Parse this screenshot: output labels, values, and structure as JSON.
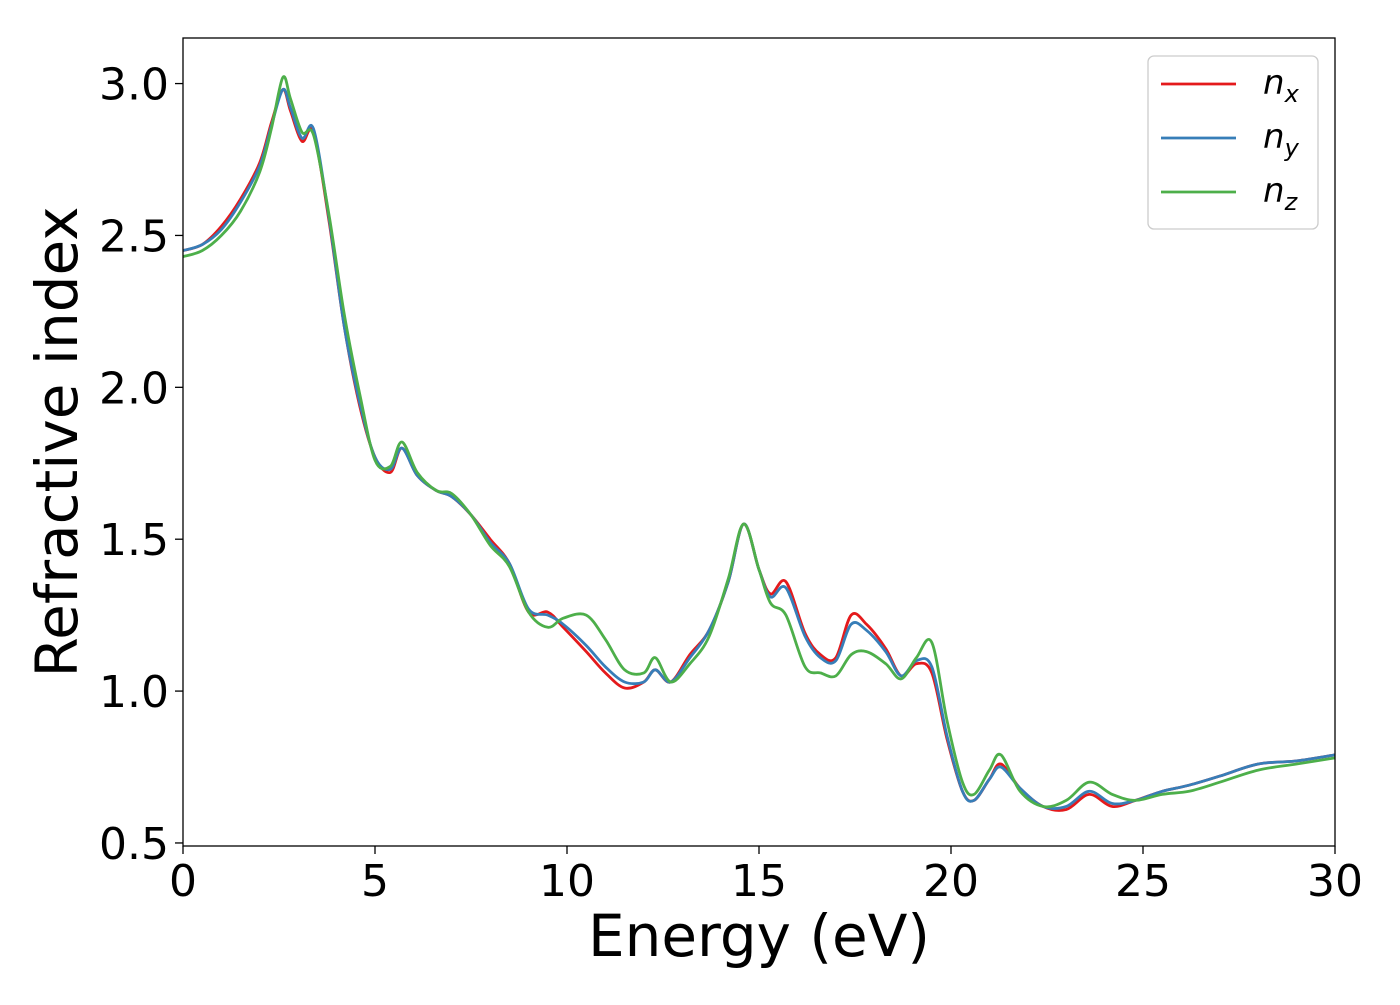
{
  "chart_data": {
    "type": "line",
    "xlabel": "Energy (eV)",
    "ylabel": "Refractive index",
    "xlim": [
      0,
      30
    ],
    "ylim": [
      0.49,
      3.15
    ],
    "x_ticks": [
      "0",
      "5",
      "10",
      "15",
      "20",
      "25",
      "30"
    ],
    "y_ticks": [
      "0.5",
      "1.0",
      "1.5",
      "2.0",
      "2.5",
      "3.0"
    ],
    "grid": false,
    "legend_position": "top-right",
    "series": [
      {
        "name": "n",
        "subscript": "x",
        "color": "#e41a1c",
        "x": [
          0,
          0.5,
          1,
          1.5,
          2,
          2.3,
          2.6,
          2.8,
          3.1,
          3.4,
          3.8,
          4.2,
          4.6,
          5.0,
          5.4,
          5.7,
          6.1,
          6.6,
          7.0,
          7.5,
          8.0,
          8.5,
          9.0,
          9.5,
          9.9,
          10.5,
          11.0,
          11.5,
          12.0,
          12.3,
          12.7,
          13.2,
          13.7,
          14.2,
          14.6,
          15.0,
          15.3,
          15.7,
          16.2,
          16.6,
          17.0,
          17.4,
          17.8,
          18.3,
          18.7,
          19.1,
          19.5,
          19.9,
          20.3,
          20.6,
          21.0,
          21.3,
          21.8,
          22.4,
          23.0,
          23.6,
          24.2,
          24.8,
          25.5,
          26.2,
          27.0,
          28.0,
          29.0,
          30.0
        ],
        "y": [
          2.45,
          2.47,
          2.53,
          2.62,
          2.74,
          2.87,
          2.98,
          2.91,
          2.81,
          2.84,
          2.55,
          2.2,
          1.94,
          1.77,
          1.72,
          1.8,
          1.71,
          1.66,
          1.64,
          1.58,
          1.5,
          1.42,
          1.26,
          1.26,
          1.21,
          1.13,
          1.06,
          1.01,
          1.03,
          1.07,
          1.03,
          1.12,
          1.2,
          1.36,
          1.55,
          1.4,
          1.32,
          1.36,
          1.19,
          1.12,
          1.11,
          1.25,
          1.22,
          1.14,
          1.05,
          1.09,
          1.06,
          0.84,
          0.67,
          0.64,
          0.71,
          0.76,
          0.68,
          0.62,
          0.61,
          0.66,
          0.62,
          0.64,
          0.67,
          0.69,
          0.72,
          0.76,
          0.77,
          0.79
        ]
      },
      {
        "name": "n",
        "subscript": "y",
        "color": "#377eb8",
        "x": [
          0,
          0.5,
          1,
          1.5,
          2,
          2.3,
          2.6,
          2.8,
          3.1,
          3.4,
          3.8,
          4.2,
          4.6,
          5.0,
          5.4,
          5.7,
          6.1,
          6.6,
          7.0,
          7.5,
          8.0,
          8.5,
          9.0,
          9.5,
          9.9,
          10.5,
          11.0,
          11.5,
          12.0,
          12.3,
          12.7,
          13.2,
          13.7,
          14.2,
          14.6,
          15.0,
          15.3,
          15.7,
          16.2,
          16.6,
          17.0,
          17.4,
          17.8,
          18.3,
          18.7,
          19.1,
          19.5,
          19.9,
          20.3,
          20.6,
          21.0,
          21.3,
          21.8,
          22.4,
          23.0,
          23.6,
          24.2,
          24.8,
          25.5,
          26.2,
          27.0,
          28.0,
          29.0,
          30.0
        ],
        "y": [
          2.45,
          2.47,
          2.52,
          2.61,
          2.73,
          2.86,
          2.98,
          2.92,
          2.82,
          2.85,
          2.56,
          2.2,
          1.95,
          1.77,
          1.73,
          1.8,
          1.71,
          1.66,
          1.64,
          1.58,
          1.49,
          1.42,
          1.27,
          1.25,
          1.22,
          1.15,
          1.08,
          1.03,
          1.03,
          1.07,
          1.03,
          1.11,
          1.2,
          1.36,
          1.55,
          1.4,
          1.31,
          1.34,
          1.18,
          1.11,
          1.1,
          1.22,
          1.2,
          1.13,
          1.05,
          1.1,
          1.08,
          0.85,
          0.67,
          0.64,
          0.71,
          0.75,
          0.68,
          0.62,
          0.62,
          0.67,
          0.63,
          0.64,
          0.67,
          0.69,
          0.72,
          0.76,
          0.77,
          0.79
        ]
      },
      {
        "name": "n",
        "subscript": "z",
        "color": "#4daf4a",
        "x": [
          0,
          0.5,
          1,
          1.5,
          2,
          2.3,
          2.6,
          2.8,
          3.1,
          3.4,
          3.8,
          4.2,
          4.6,
          5.0,
          5.4,
          5.7,
          6.1,
          6.6,
          7.0,
          7.5,
          8.0,
          8.5,
          9.0,
          9.5,
          9.9,
          10.5,
          11.0,
          11.5,
          12.0,
          12.3,
          12.7,
          13.2,
          13.7,
          14.2,
          14.6,
          15.0,
          15.3,
          15.7,
          16.2,
          16.6,
          17.0,
          17.4,
          17.8,
          18.3,
          18.7,
          19.1,
          19.5,
          19.9,
          20.3,
          20.6,
          21.0,
          21.3,
          21.8,
          22.4,
          23.0,
          23.6,
          24.2,
          24.8,
          25.5,
          26.2,
          27.0,
          28.0,
          29.0,
          30.0
        ],
        "y": [
          2.43,
          2.45,
          2.5,
          2.58,
          2.71,
          2.85,
          3.02,
          2.95,
          2.84,
          2.83,
          2.57,
          2.24,
          1.98,
          1.76,
          1.74,
          1.82,
          1.72,
          1.66,
          1.65,
          1.58,
          1.48,
          1.41,
          1.26,
          1.21,
          1.24,
          1.25,
          1.17,
          1.07,
          1.06,
          1.11,
          1.03,
          1.09,
          1.18,
          1.37,
          1.55,
          1.4,
          1.29,
          1.25,
          1.08,
          1.06,
          1.05,
          1.12,
          1.13,
          1.09,
          1.04,
          1.11,
          1.16,
          0.9,
          0.7,
          0.66,
          0.74,
          0.79,
          0.67,
          0.62,
          0.64,
          0.7,
          0.66,
          0.64,
          0.66,
          0.67,
          0.7,
          0.74,
          0.76,
          0.78
        ]
      }
    ]
  }
}
